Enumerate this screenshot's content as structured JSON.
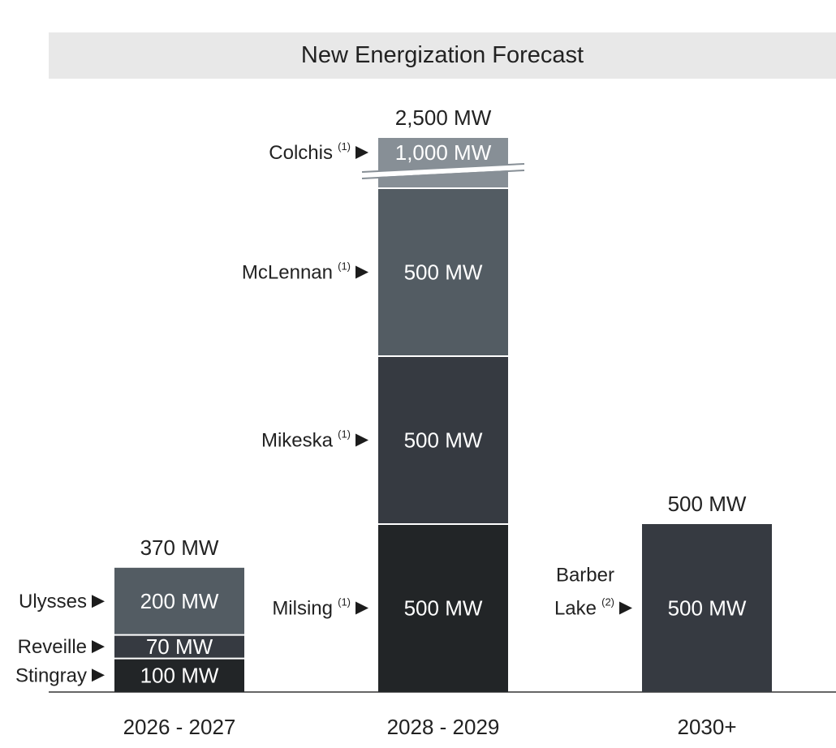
{
  "chart_data": {
    "type": "bar",
    "stacked": true,
    "title": "New Energization Forecast",
    "unit": "MW",
    "categories": [
      "2026 - 2027",
      "2028 - 2029",
      "2030+"
    ],
    "bars": [
      {
        "category": "2026 - 2027",
        "total": 370,
        "total_label": "370 MW",
        "segments": [
          {
            "name": "Stingray",
            "note": "",
            "value": 100,
            "label": "100 MW",
            "color": "#222527"
          },
          {
            "name": "Reveille",
            "note": "",
            "value": 70,
            "label": "70 MW",
            "color": "#363a41"
          },
          {
            "name": "Ulysses",
            "note": "",
            "value": 200,
            "label": "200 MW",
            "color": "#535c63"
          }
        ]
      },
      {
        "category": "2028 - 2029",
        "total": 2500,
        "total_label": "2,500 MW",
        "segments": [
          {
            "name": "Milsing",
            "note": "(1)",
            "value": 500,
            "label": "500 MW",
            "color": "#222527"
          },
          {
            "name": "Mikeska",
            "note": "(1)",
            "value": 500,
            "label": "500 MW",
            "color": "#363a41"
          },
          {
            "name": "McLennan",
            "note": "(1)",
            "value": 500,
            "label": "500 MW",
            "color": "#535c63"
          },
          {
            "name": "Colchis",
            "note": "(1)",
            "value": 1000,
            "label": "1,000 MW",
            "color": "#878f96",
            "broken": true
          }
        ]
      },
      {
        "category": "2030+",
        "total": 500,
        "total_label": "500 MW",
        "segments": [
          {
            "name": "Barber Lake",
            "name_lines": [
              "Barber",
              "Lake"
            ],
            "note": "(2)",
            "value": 500,
            "label": "500 MW",
            "color": "#363a41"
          }
        ]
      }
    ],
    "axis_break": true,
    "grid": false,
    "legend": "none"
  }
}
